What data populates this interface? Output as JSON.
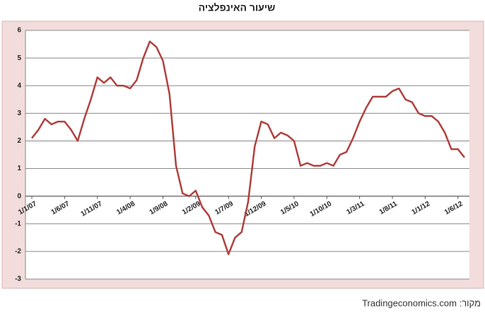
{
  "chart_data": {
    "type": "line",
    "title": "שיעור האינפלציה",
    "source": "מקור: Tradingeconomics.com",
    "categories": [
      "1/1/07",
      null,
      null,
      null,
      null,
      "1/6/07",
      null,
      null,
      null,
      null,
      "1/11/07",
      null,
      null,
      null,
      null,
      "1/4/08",
      null,
      null,
      null,
      null,
      "1/9/08",
      null,
      null,
      null,
      null,
      "1/2/09",
      null,
      null,
      null,
      null,
      "1/7/09",
      null,
      null,
      null,
      null,
      "1/12/09",
      null,
      null,
      null,
      null,
      "1/5/10",
      null,
      null,
      null,
      null,
      "1/10/10",
      null,
      null,
      null,
      null,
      "1/3/11",
      null,
      null,
      null,
      null,
      "1/8/11",
      null,
      null,
      null,
      null,
      "1/1/12",
      null,
      null,
      null,
      null,
      "1/6/12",
      null
    ],
    "values": [
      2.1,
      2.4,
      2.8,
      2.6,
      2.7,
      2.7,
      2.4,
      2.0,
      2.8,
      3.5,
      4.3,
      4.1,
      4.3,
      4.0,
      4.0,
      3.9,
      4.2,
      5.0,
      5.6,
      5.4,
      4.9,
      3.7,
      1.1,
      0.1,
      0.0,
      0.2,
      -0.4,
      -0.7,
      -1.3,
      -1.4,
      -2.1,
      -1.5,
      -1.3,
      -0.2,
      1.8,
      2.7,
      2.6,
      2.1,
      2.3,
      2.2,
      2.0,
      1.1,
      1.2,
      1.1,
      1.1,
      1.2,
      1.1,
      1.5,
      1.6,
      2.1,
      2.7,
      3.2,
      3.6,
      3.6,
      3.6,
      3.8,
      3.9,
      3.5,
      3.4,
      3.0,
      2.9,
      2.9,
      2.7,
      2.3,
      1.7,
      1.7,
      1.4
    ],
    "color": "#b0413e",
    "ylim": [
      -3,
      6
    ],
    "yticks": [
      -3,
      -2,
      -1,
      0,
      1,
      2,
      3,
      4,
      5,
      6
    ],
    "grid": true
  }
}
